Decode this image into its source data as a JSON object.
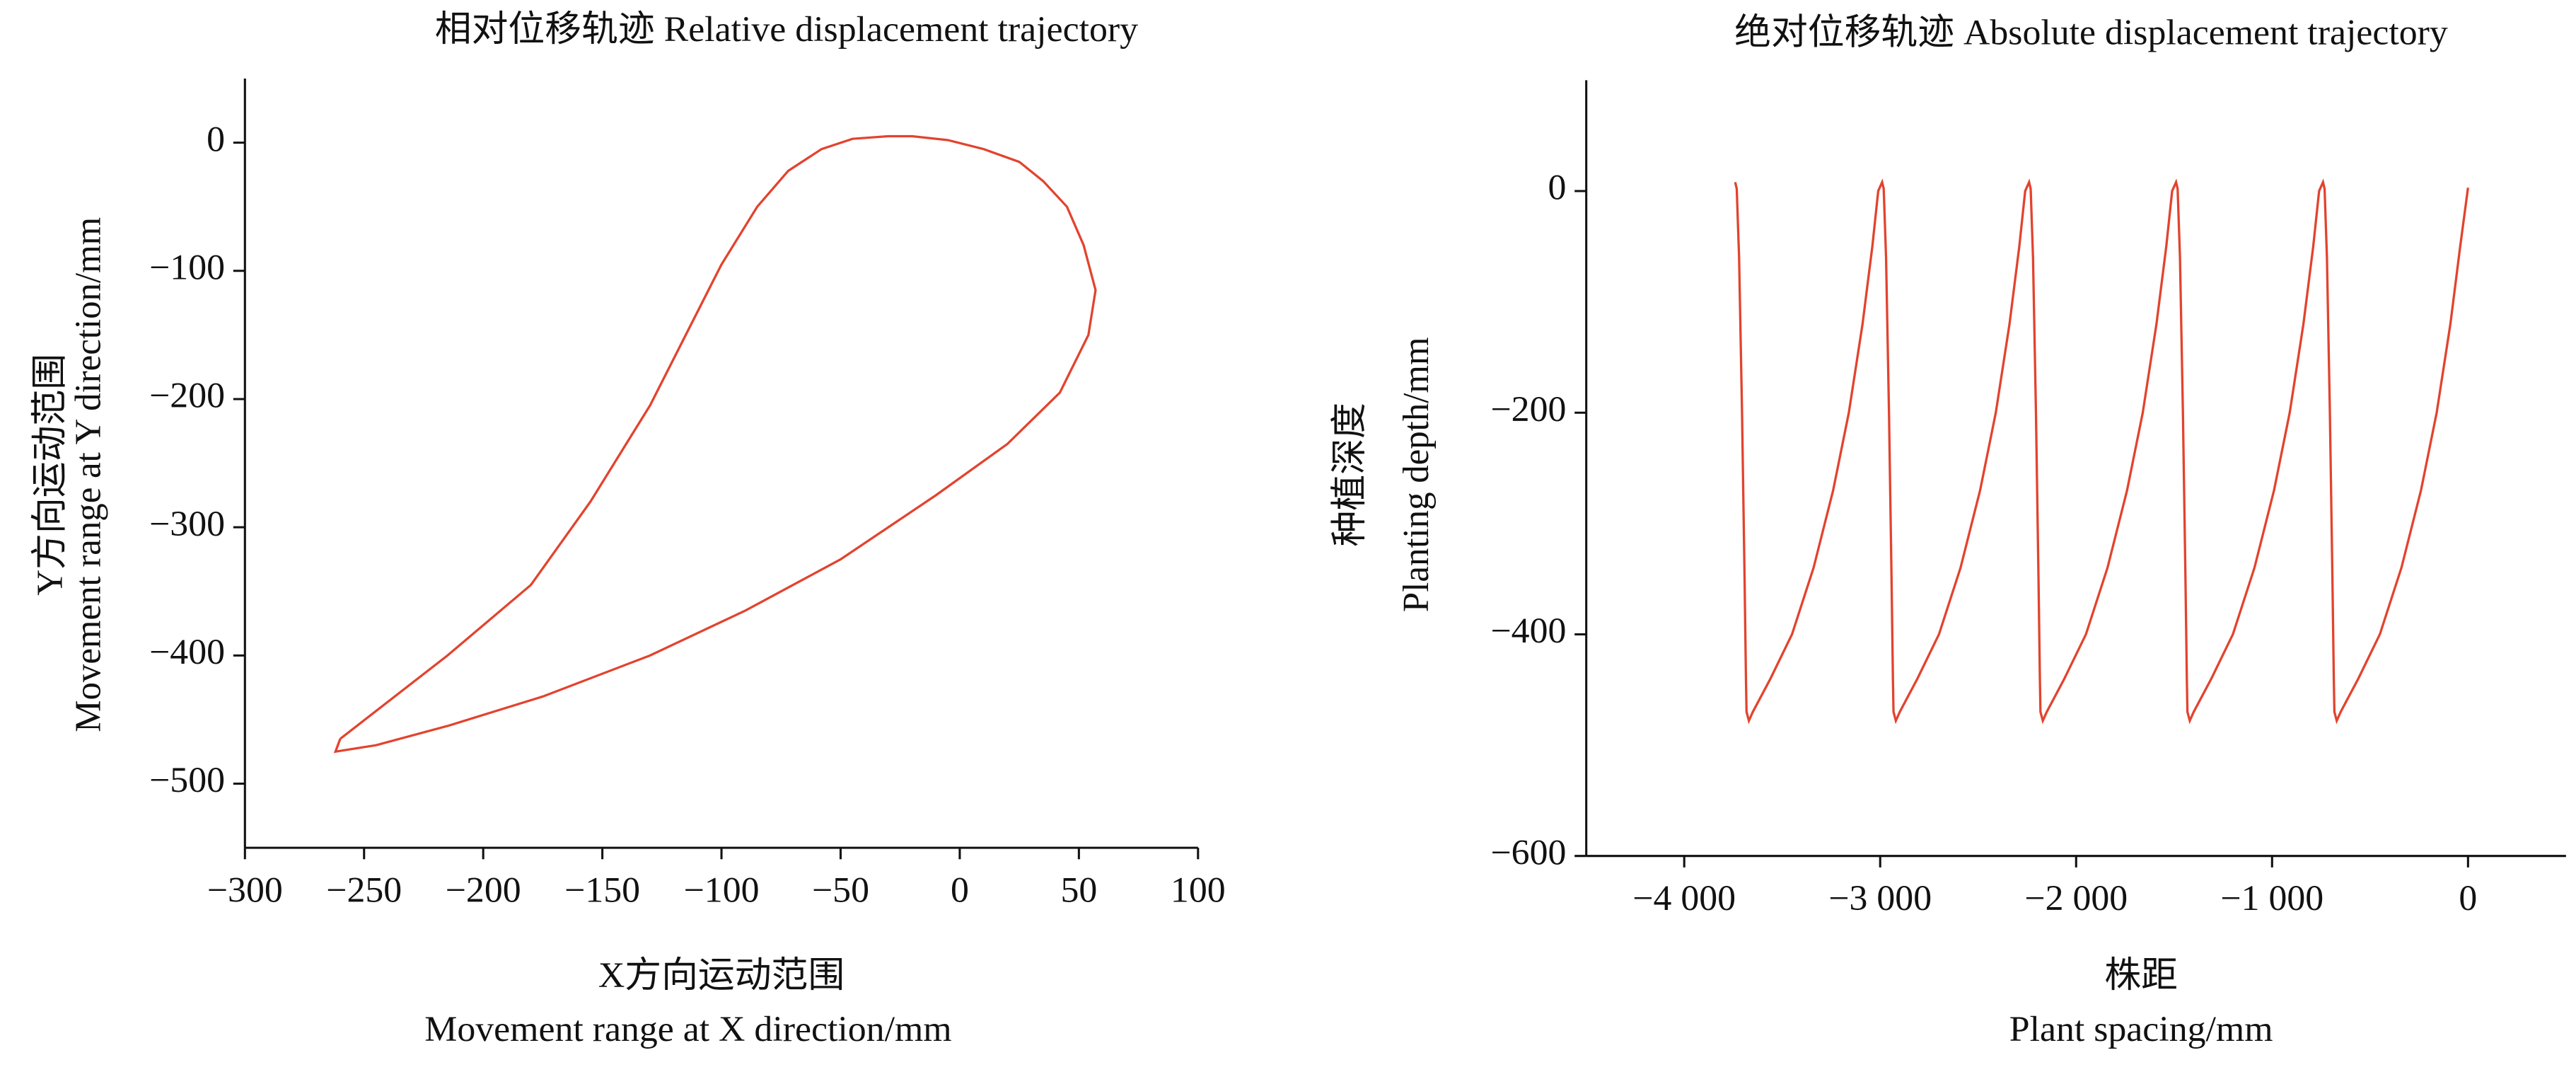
{
  "chart_data": [
    {
      "type": "line",
      "title": "相对位移轨迹 Relative displacement trajectory",
      "xlabel": [
        "X方向运动范围",
        "Movement range at X direction/mm"
      ],
      "ylabel": [
        "Y方向运动范围",
        "Movement range at Y direction/mm"
      ],
      "xlim": [
        -300,
        100
      ],
      "xticks": [
        {
          "value": -300,
          "label": "−300"
        },
        {
          "value": -250,
          "label": "−250"
        },
        {
          "value": -200,
          "label": "−200"
        },
        {
          "value": -150,
          "label": "−150"
        },
        {
          "value": -100,
          "label": "−100"
        },
        {
          "value": -50,
          "label": "−50"
        },
        0,
        50,
        100
      ],
      "ylim": [
        -550,
        50
      ],
      "yticks": [
        0,
        {
          "value": -100,
          "label": "−100"
        },
        {
          "value": -200,
          "label": "−200"
        },
        {
          "value": -300,
          "label": "−300"
        },
        {
          "value": -400,
          "label": "−400"
        },
        {
          "value": -500,
          "label": "−500"
        }
      ],
      "series": [
        {
          "color": "#e2432e",
          "x": [
            -260,
            -215,
            -180,
            -155,
            -130,
            -115,
            -100,
            -85,
            -72,
            -58,
            -45,
            -30,
            -20,
            -5,
            10,
            25,
            35,
            45,
            52,
            57,
            54,
            42,
            20,
            -10,
            -50,
            -90,
            -130,
            -175,
            -215,
            -245,
            -262,
            -260
          ],
          "values": [
            -465,
            -400,
            -345,
            -280,
            -205,
            -150,
            -95,
            -50,
            -22,
            -5,
            3,
            5,
            5,
            2,
            -5,
            -15,
            -30,
            -50,
            -80,
            -115,
            -150,
            -195,
            -235,
            -275,
            -325,
            -365,
            -400,
            -432,
            -455,
            -470,
            -475,
            -465
          ]
        }
      ]
    },
    {
      "type": "line",
      "title": "绝对位移轨迹 Absolute displacement trajectory",
      "xlabel": [
        "株距",
        "Plant spacing/mm"
      ],
      "ylabel": [
        "种植深度",
        "Planting depth/mm"
      ],
      "xlim": [
        -4500,
        500
      ],
      "xticks": [
        {
          "value": -4000,
          "label": "−4 000"
        },
        {
          "value": -3000,
          "label": "−3 000"
        },
        {
          "value": -2000,
          "label": "−2 000"
        },
        {
          "value": -1000,
          "label": "−1 000"
        },
        0
      ],
      "ylim": [
        -600,
        100
      ],
      "yticks": [
        0,
        {
          "value": -200,
          "label": "−200"
        },
        {
          "value": -400,
          "label": "−400"
        },
        {
          "value": -600,
          "label": "−600"
        }
      ],
      "series": [
        {
          "color": "#e2432e",
          "x": [
            -3740,
            -3732,
            -3720,
            -3705,
            -3692,
            -3685,
            -3682,
            -3670,
            -3650,
            -3560,
            -3450,
            -3340,
            -3240,
            -3160,
            -3090,
            -3040,
            -3010,
            -2990,
            -2982,
            -2970,
            -2955,
            -2942,
            -2935,
            -2932,
            -2920,
            -2900,
            -2810,
            -2700,
            -2590,
            -2490,
            -2410,
            -2340,
            -2290,
            -2260,
            -2240,
            -2232,
            -2220,
            -2205,
            -2192,
            -2185,
            -2182,
            -2170,
            -2150,
            -2060,
            -1950,
            -1840,
            -1740,
            -1660,
            -1590,
            -1540,
            -1510,
            -1490,
            -1482,
            -1470,
            -1455,
            -1442,
            -1435,
            -1432,
            -1420,
            -1400,
            -1310,
            -1200,
            -1090,
            -990,
            -910,
            -840,
            -790,
            -760,
            -740,
            -732,
            -720,
            -705,
            -692,
            -685,
            -682,
            -670,
            -650,
            -560,
            -450,
            -340,
            -240,
            -160,
            -90,
            -40,
            0
          ],
          "values": [
            8,
            2,
            -60,
            -200,
            -350,
            -440,
            -470,
            -478,
            -470,
            -440,
            -400,
            -340,
            -270,
            -200,
            -120,
            -50,
            0,
            8,
            2,
            -60,
            -200,
            -350,
            -440,
            -470,
            -478,
            -470,
            -440,
            -400,
            -340,
            -270,
            -200,
            -120,
            -50,
            0,
            8,
            2,
            -60,
            -200,
            -350,
            -440,
            -470,
            -478,
            -470,
            -440,
            -400,
            -340,
            -270,
            -200,
            -120,
            -50,
            0,
            8,
            2,
            -60,
            -200,
            -350,
            -440,
            -470,
            -478,
            -470,
            -440,
            -400,
            -340,
            -270,
            -200,
            -120,
            -50,
            0,
            8,
            2,
            -60,
            -200,
            -350,
            -440,
            -470,
            -478,
            -470,
            -440,
            -400,
            -340,
            -270,
            -200,
            -120,
            -50,
            3
          ]
        }
      ]
    }
  ]
}
